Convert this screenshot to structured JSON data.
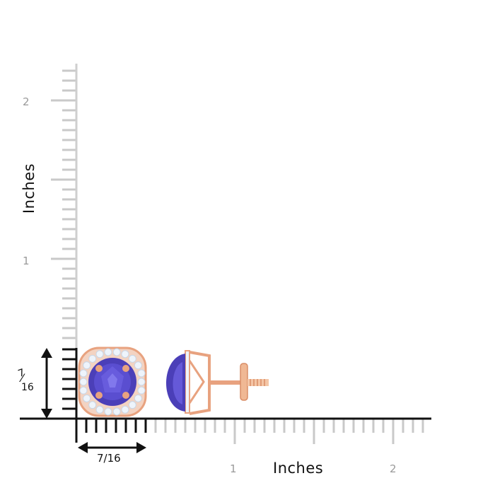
{
  "ruler": {
    "x_axis_title": "Inches",
    "y_axis_title": "Inches",
    "x_tick_labels": [
      "1",
      "2"
    ],
    "y_tick_labels": [
      "2",
      "1"
    ],
    "tick_color": "#c9c9c9",
    "main_line_color": "#111111"
  },
  "dimensions": {
    "width_label": "7/16",
    "height_numerator": "7",
    "height_denominator": "16"
  },
  "product": {
    "metal_color": "#e8a27f",
    "gem_color": "#4b3fb8",
    "accent_stone_color": "#eef4fb"
  }
}
